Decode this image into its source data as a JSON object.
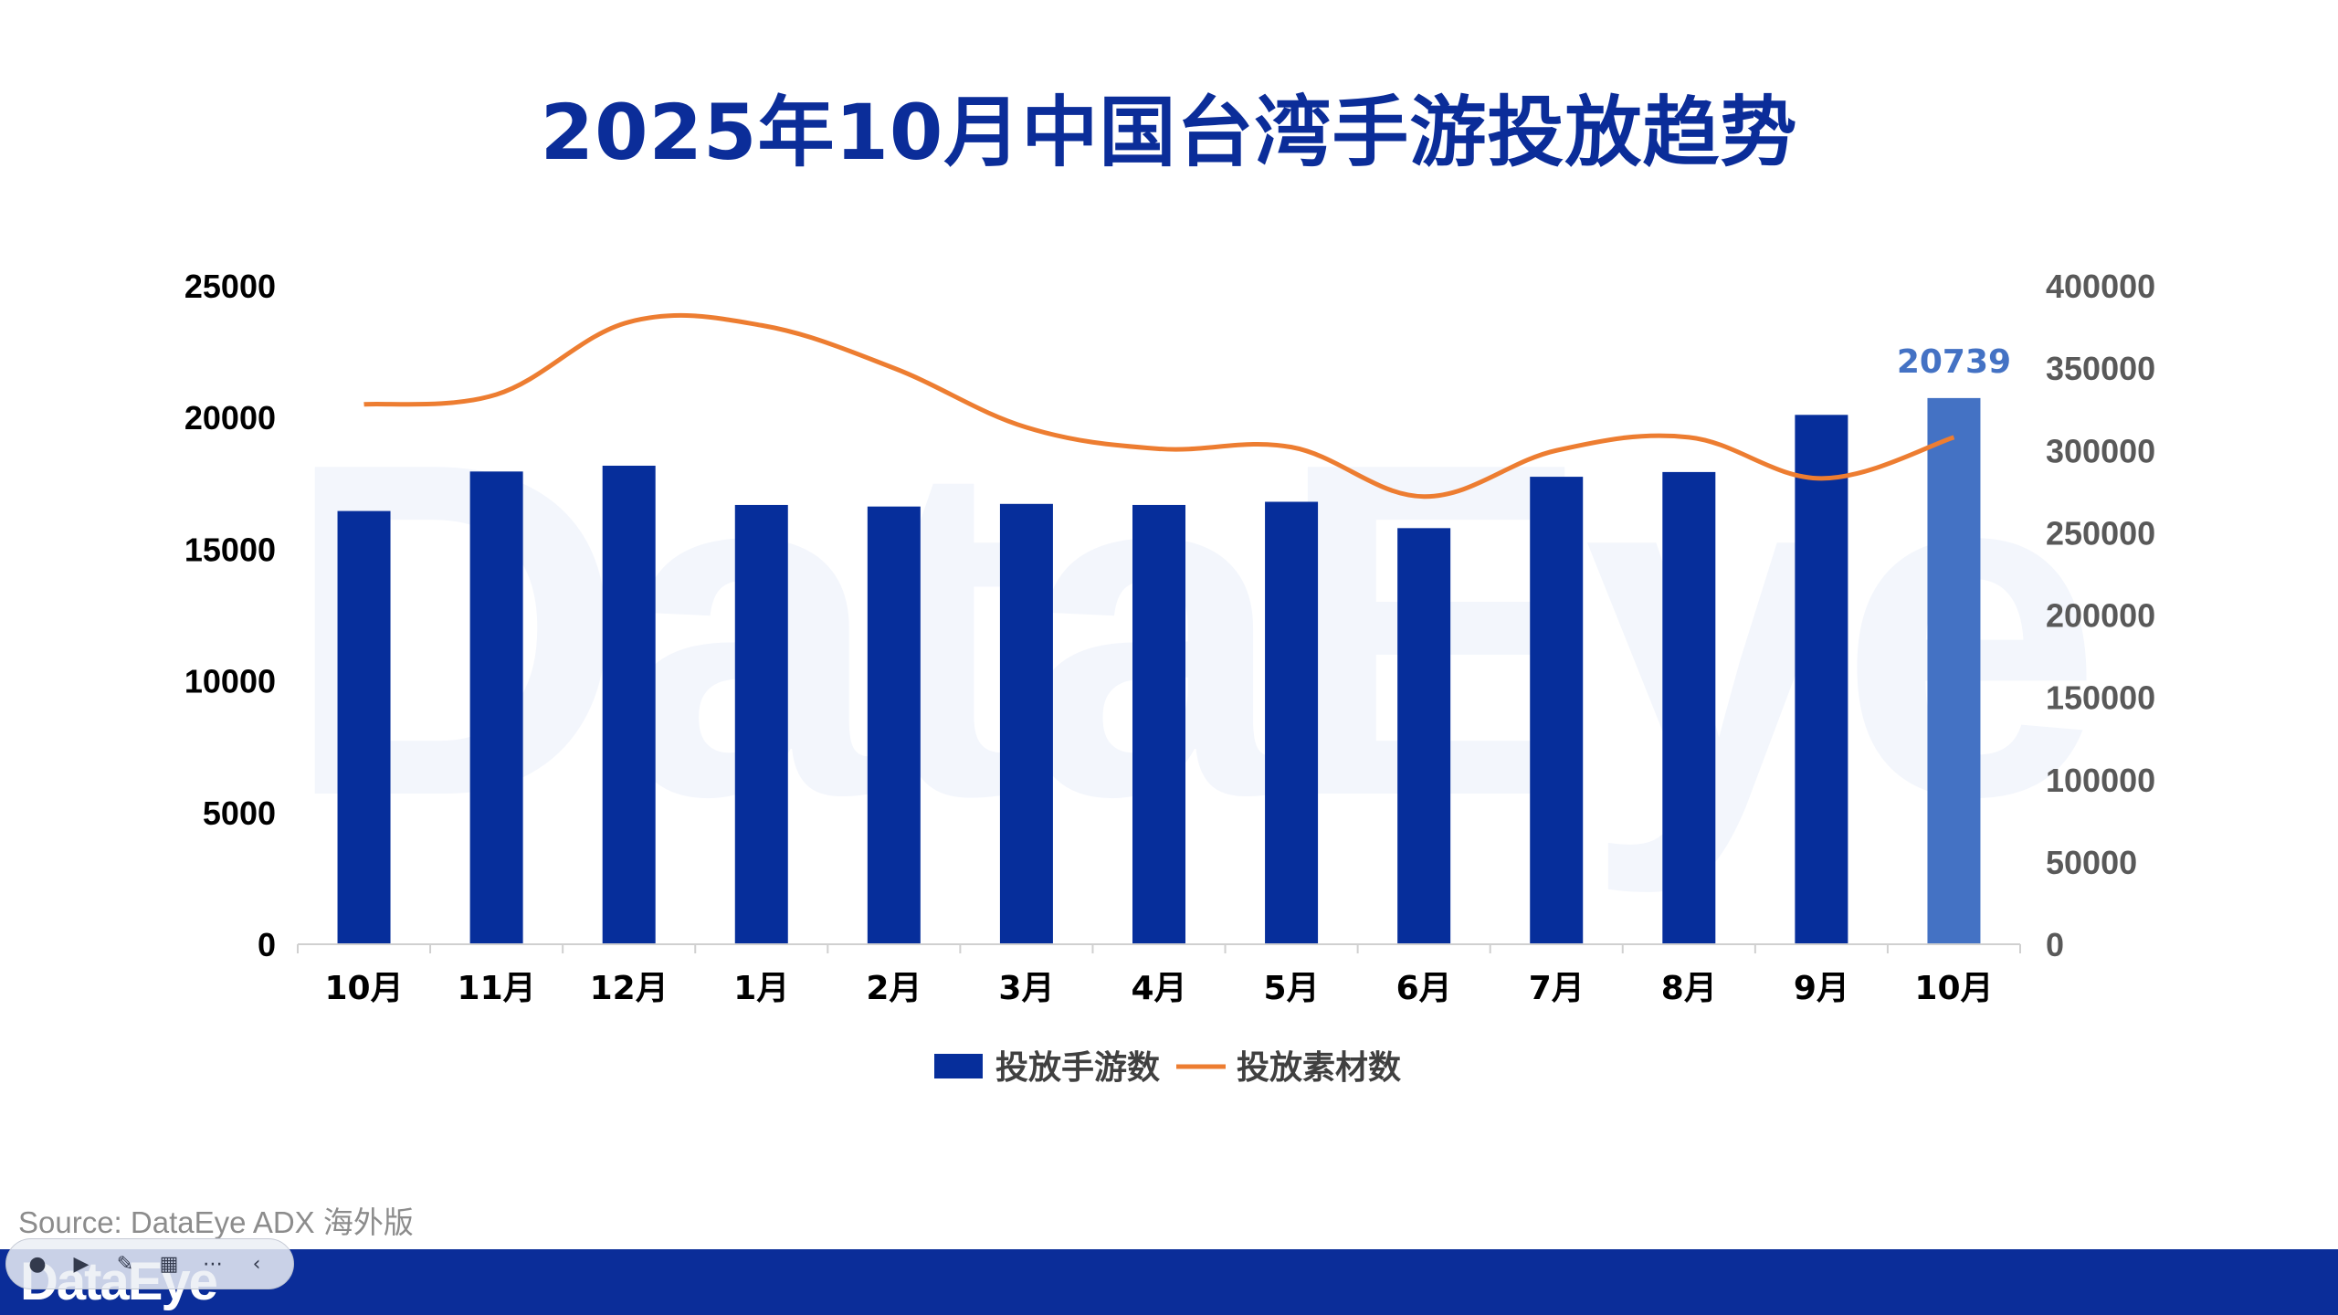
{
  "title": "2025年10月中国台湾手游投放趋势",
  "watermark": "DataEye",
  "source": "Source: DataEye ADX 海外版",
  "footer_logo": "DataEye",
  "toolbar": {
    "icons": [
      "circle-icon",
      "play-icon",
      "pen-icon",
      "grid-icon",
      "more-icon",
      "chevron-left-icon"
    ],
    "glyphs": [
      "●",
      "▶",
      "✎",
      "▦",
      "⋯",
      "‹"
    ]
  },
  "colors": {
    "bar": "#062e9b",
    "bar_highlight": "#4472c4",
    "line": "#ed7d31",
    "title": "#0b2d99",
    "axis_left_text": "#000000",
    "axis_right_text": "#595959"
  },
  "chart_data": {
    "type": "bar+line",
    "categories": [
      "10月",
      "11月",
      "12月",
      "1月",
      "2月",
      "3月",
      "4月",
      "5月",
      "6月",
      "7月",
      "8月",
      "9月",
      "10月"
    ],
    "series": [
      {
        "name": "投放手游数",
        "type": "bar",
        "axis": "left",
        "values": [
          16450,
          17950,
          18170,
          16680,
          16620,
          16720,
          16680,
          16800,
          15800,
          17750,
          17930,
          20100,
          20739
        ]
      },
      {
        "name": "投放素材数",
        "type": "line",
        "axis": "right",
        "values": [
          328000,
          334000,
          378000,
          376000,
          350000,
          314000,
          301000,
          302000,
          272000,
          300000,
          308000,
          283000,
          308000
        ]
      }
    ],
    "left_axis": {
      "min": 0,
      "max": 25000,
      "ticks": [
        "0",
        "5000",
        "10000",
        "15000",
        "20000",
        "25000"
      ]
    },
    "right_axis": {
      "min": 0,
      "max": 400000,
      "ticks": [
        "0",
        "50000",
        "100000",
        "150000",
        "200000",
        "250000",
        "300000",
        "350000",
        "400000"
      ]
    },
    "data_label": {
      "index": 12,
      "text": "20739"
    },
    "legend": [
      "投放手游数",
      "投放素材数"
    ],
    "legend_position": "bottom",
    "grid": false
  }
}
